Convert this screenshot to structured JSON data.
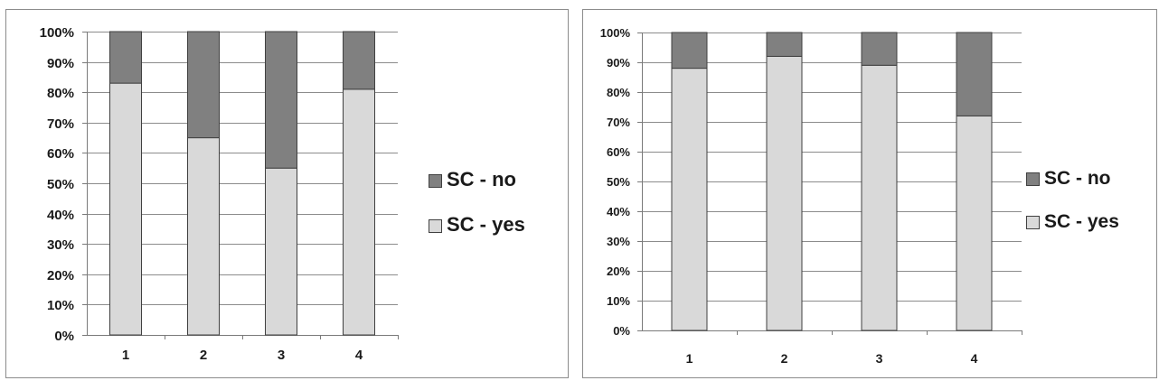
{
  "colors": {
    "no": "#808080",
    "yes": "#d9d9d9",
    "border": "#404040"
  },
  "chart_data": [
    {
      "type": "bar",
      "stacked": true,
      "categories": [
        "1",
        "2",
        "3",
        "4"
      ],
      "yticks": [
        "0%",
        "10%",
        "20%",
        "30%",
        "40%",
        "50%",
        "60%",
        "70%",
        "80%",
        "90%",
        "100%"
      ],
      "ylim": [
        0,
        100
      ],
      "grid": true,
      "legend_position": "right",
      "series": [
        {
          "name": "SC - yes",
          "values": [
            83,
            65,
            55,
            81
          ]
        },
        {
          "name": "SC - no",
          "values": [
            17,
            35,
            45,
            19
          ]
        }
      ],
      "legend": [
        "SC - no",
        "SC - yes"
      ]
    },
    {
      "type": "bar",
      "stacked": true,
      "categories": [
        "1",
        "2",
        "3",
        "4"
      ],
      "yticks": [
        "0%",
        "10%",
        "20%",
        "30%",
        "40%",
        "50%",
        "60%",
        "70%",
        "80%",
        "90%",
        "100%"
      ],
      "ylim": [
        0,
        100
      ],
      "grid": true,
      "legend_position": "right",
      "series": [
        {
          "name": "SC - yes",
          "values": [
            88,
            92,
            89,
            72
          ]
        },
        {
          "name": "SC - no",
          "values": [
            12,
            8,
            11,
            28
          ]
        }
      ],
      "legend": [
        "SC - no",
        "SC - yes"
      ]
    }
  ]
}
